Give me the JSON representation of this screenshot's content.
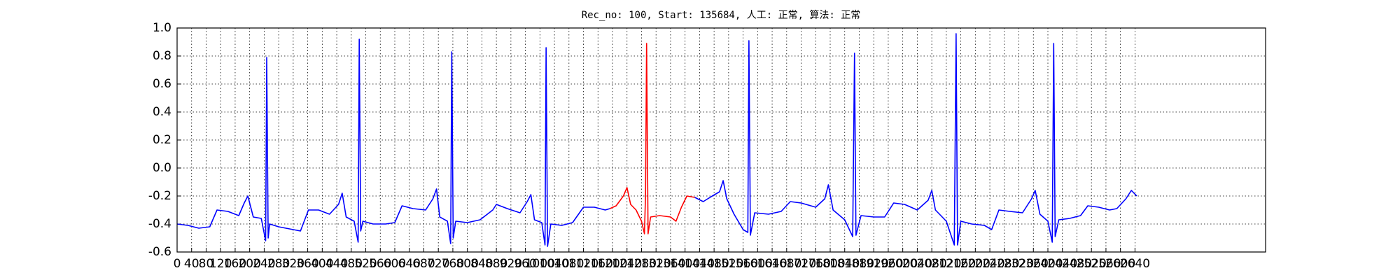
{
  "chart_data": {
    "type": "line",
    "title": "Rec_no: 100, Start: 135684, 人工: 正常, 算法: 正常",
    "xlim": [
      0,
      3000
    ],
    "ylim": [
      -0.6,
      1.0
    ],
    "grid": true,
    "xticks": [
      0,
      40,
      80,
      120,
      160,
      200,
      240,
      280,
      320,
      360,
      400,
      440,
      480,
      520,
      560,
      600,
      640,
      680,
      720,
      760,
      800,
      840,
      880,
      920,
      960,
      1000,
      1040,
      1080,
      1120,
      1160,
      1200,
      1240,
      1280,
      1320,
      1360,
      1400,
      1440,
      1480,
      1520,
      1560,
      1600,
      1640,
      1680,
      1720,
      1760,
      1800,
      1840,
      1880,
      1920,
      1960,
      2000,
      2040,
      2080,
      2120,
      2160,
      2200,
      2240,
      2280,
      2320,
      2360,
      2400,
      2440,
      2480,
      2520,
      2560,
      2600,
      2640
    ],
    "yticks": [
      -0.6,
      -0.4,
      -0.2,
      {
        "value": 0,
        "label": "0.0"
      },
      0.2,
      0.4,
      0.6,
      0.8,
      {
        "value": 1,
        "label": "1.0"
      }
    ],
    "series": [
      {
        "color": "#0000ff",
        "x": [
          0,
          30,
          60,
          90,
          110,
          140,
          170,
          185,
          195,
          210,
          232,
          244,
          247,
          251,
          255,
          280,
          320,
          340,
          362,
          390,
          420,
          445,
          455,
          466,
          488,
          499,
          502,
          506,
          512,
          540,
          575,
          600,
          620,
          650,
          685,
          705,
          715,
          724,
          745,
          754,
          757,
          761,
          768,
          800,
          835,
          870,
          880,
          910,
          945,
          965,
          975,
          985,
          1005,
          1014,
          1017,
          1021,
          1030,
          1060,
          1090,
          1120,
          1150,
          1180,
          1193
        ],
        "values": [
          -0.4,
          -0.41,
          -0.43,
          -0.42,
          -0.3,
          -0.31,
          -0.34,
          -0.25,
          -0.2,
          -0.35,
          -0.36,
          -0.52,
          0.79,
          -0.5,
          -0.4,
          -0.42,
          -0.44,
          -0.45,
          -0.3,
          -0.3,
          -0.33,
          -0.26,
          -0.18,
          -0.35,
          -0.38,
          -0.53,
          0.92,
          -0.45,
          -0.38,
          -0.4,
          -0.4,
          -0.39,
          -0.27,
          -0.29,
          -0.3,
          -0.22,
          -0.15,
          -0.35,
          -0.38,
          -0.54,
          0.83,
          -0.5,
          -0.38,
          -0.39,
          -0.37,
          -0.3,
          -0.26,
          -0.29,
          -0.32,
          -0.24,
          -0.19,
          -0.37,
          -0.39,
          -0.55,
          0.86,
          -0.56,
          -0.4,
          -0.41,
          -0.39,
          -0.28,
          -0.28,
          -0.3,
          -0.29
        ]
      },
      {
        "color": "#ff0000",
        "x": [
          1193,
          1210,
          1230,
          1240,
          1250,
          1265,
          1280,
          1288,
          1291,
          1294,
          1298,
          1305,
          1330,
          1360,
          1375,
          1390,
          1405,
          1427
        ],
        "values": [
          -0.29,
          -0.27,
          -0.2,
          -0.14,
          -0.26,
          -0.3,
          -0.38,
          -0.47,
          -0.2,
          0.89,
          -0.47,
          -0.35,
          -0.34,
          -0.35,
          -0.38,
          -0.28,
          -0.2,
          -0.21
        ]
      },
      {
        "color": "#0000ff",
        "x": [
          1427,
          1450,
          1475,
          1495,
          1505,
          1515,
          1535,
          1560,
          1573,
          1576,
          1580,
          1592,
          1630,
          1665,
          1690,
          1720,
          1760,
          1785,
          1795,
          1808,
          1840,
          1862,
          1867,
          1871,
          1885,
          1920,
          1950,
          1975,
          2005,
          2040,
          2070,
          2080,
          2090,
          2120,
          2142,
          2147,
          2151,
          2160,
          2190,
          2225,
          2245,
          2265,
          2295,
          2330,
          2355,
          2365,
          2378,
          2400,
          2412,
          2416,
          2420,
          2430,
          2460,
          2490,
          2510,
          2540,
          2570,
          2590,
          2615,
          2630,
          2645
        ],
        "values": [
          -0.21,
          -0.24,
          -0.2,
          -0.17,
          -0.09,
          -0.22,
          -0.33,
          -0.44,
          -0.46,
          0.91,
          -0.48,
          -0.32,
          -0.33,
          -0.31,
          -0.24,
          -0.25,
          -0.28,
          -0.22,
          -0.12,
          -0.3,
          -0.37,
          -0.49,
          0.82,
          -0.48,
          -0.34,
          -0.35,
          -0.35,
          -0.25,
          -0.26,
          -0.3,
          -0.23,
          -0.16,
          -0.3,
          -0.38,
          -0.55,
          0.96,
          -0.55,
          -0.38,
          -0.4,
          -0.41,
          -0.44,
          -0.3,
          -0.31,
          -0.32,
          -0.22,
          -0.16,
          -0.33,
          -0.38,
          -0.53,
          0.89,
          -0.49,
          -0.37,
          -0.36,
          -0.34,
          -0.27,
          -0.28,
          -0.3,
          -0.29,
          -0.22,
          -0.16,
          -0.2
        ]
      }
    ]
  }
}
